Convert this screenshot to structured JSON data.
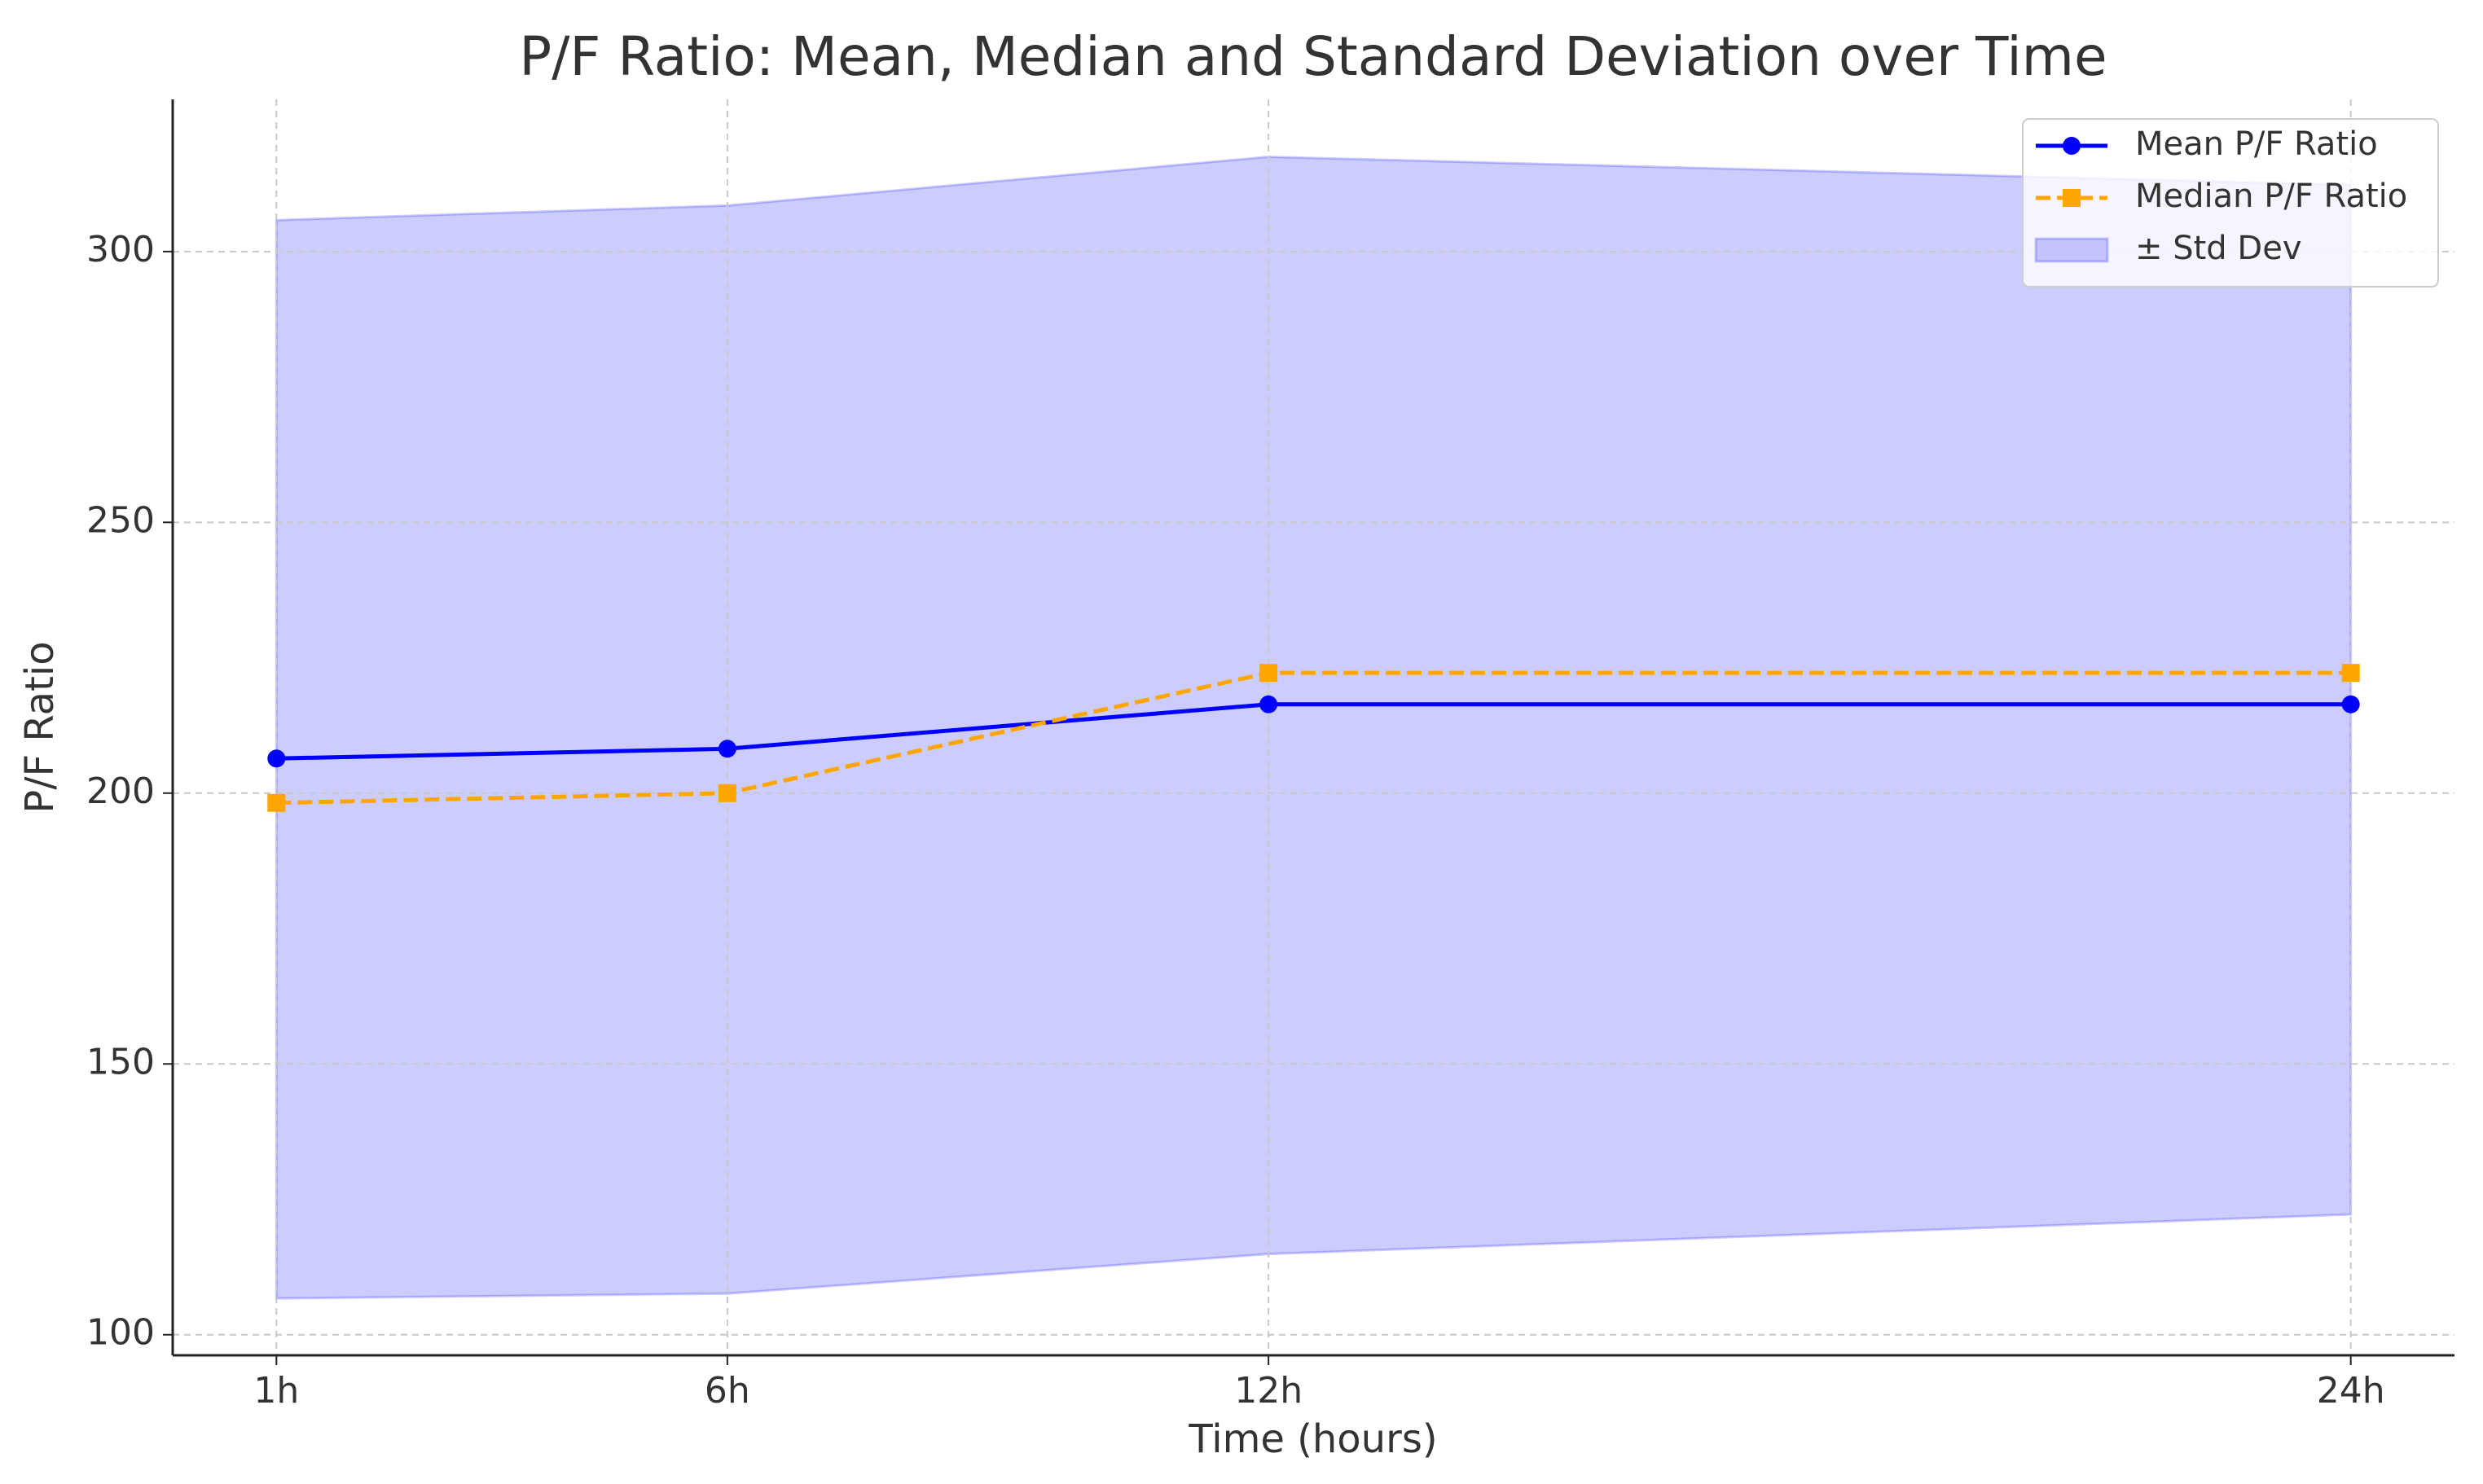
{
  "chart_data": {
    "type": "line",
    "title": "P/F Ratio: Mean, Median and Standard Deviation over Time",
    "xlabel": "Time (hours)",
    "ylabel": "P/F Ratio",
    "x": [
      1,
      6,
      12,
      24
    ],
    "xlim": [
      -0.15,
      25.15
    ],
    "xticks": [
      {
        "value": 1,
        "label": "1h"
      },
      {
        "value": 6,
        "label": "6h"
      },
      {
        "value": 12,
        "label": "12h"
      },
      {
        "value": 24,
        "label": "24h"
      }
    ],
    "ylim": [
      96.2,
      328.1
    ],
    "yticks": [
      100,
      150,
      200,
      250,
      300
    ],
    "grid": true,
    "legend": "upper right",
    "series": [
      {
        "name": "Mean P/F Ratio",
        "color": "#0000ff",
        "marker": "circle",
        "dash": "solid",
        "values": [
          206.4,
          208.2,
          216.4,
          216.4
        ]
      },
      {
        "name": "Median P/F Ratio",
        "color": "#ffa500",
        "marker": "square",
        "dash": "dashed",
        "values": [
          198.2,
          200,
          222.2,
          222.2
        ]
      }
    ],
    "band": {
      "name": "± Std Dev",
      "color": "#0000ff",
      "alpha": 0.2,
      "upper": [
        305.8,
        308.5,
        317.5,
        312.3
      ],
      "lower": [
        106.7,
        107.6,
        114.9,
        122.2
      ]
    }
  }
}
